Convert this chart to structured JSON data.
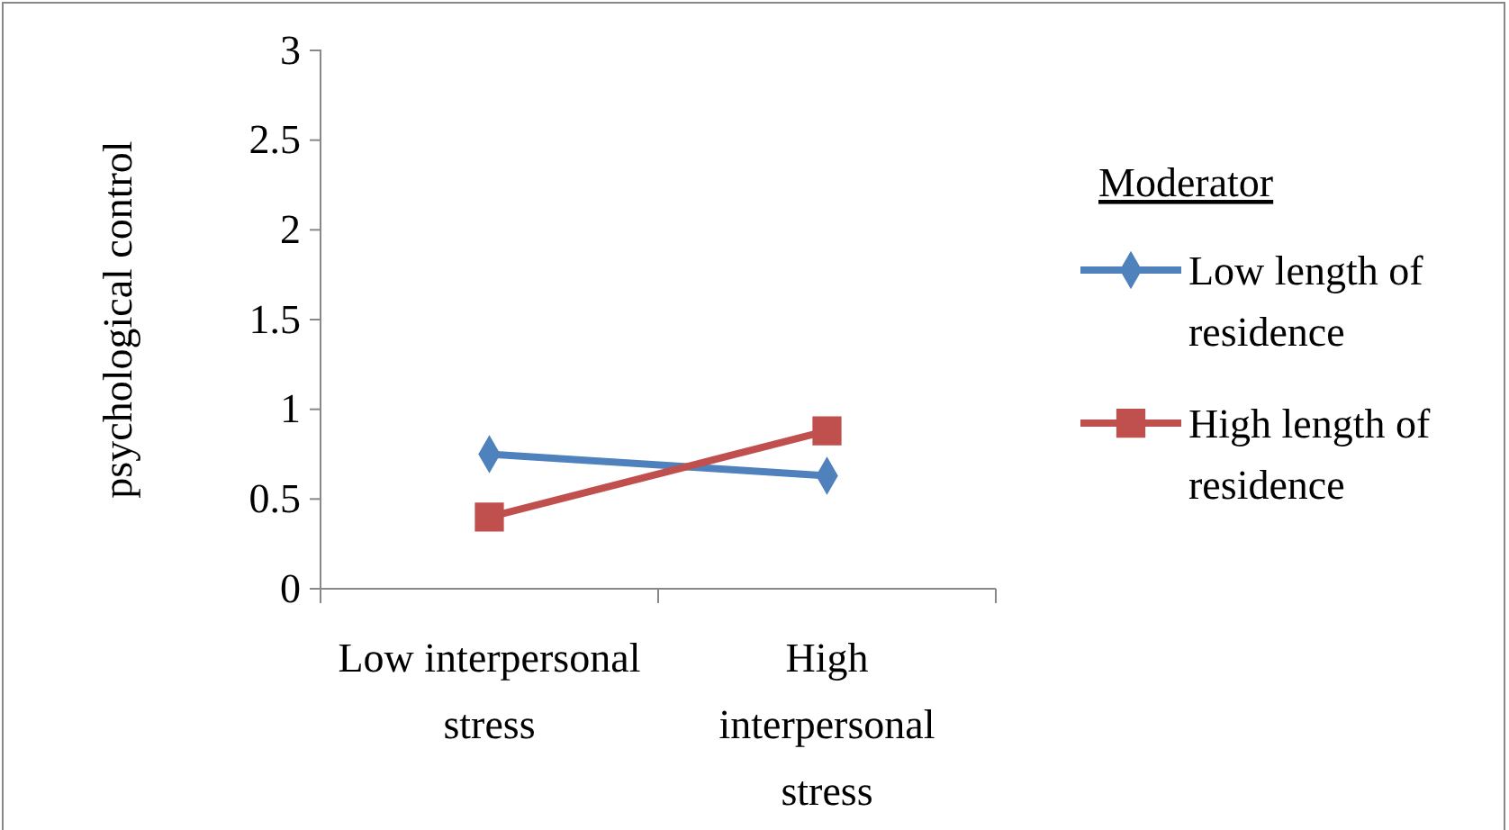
{
  "chart_data": {
    "type": "line",
    "ylabel": "psychological control",
    "legend_title": "Moderator",
    "categories": [
      "Low interpersonal stress",
      "High interpersonal stress"
    ],
    "series": [
      {
        "name": "Low length of residence",
        "color": "#4f81bd",
        "marker": "diamond",
        "values": [
          0.75,
          0.63
        ]
      },
      {
        "name": "High length of residence",
        "color": "#c0504d",
        "marker": "square",
        "values": [
          0.4,
          0.88
        ]
      }
    ],
    "ylim": [
      0,
      3
    ],
    "yticks": [
      0,
      0.5,
      1,
      1.5,
      2,
      2.5,
      3
    ],
    "grid": false,
    "legend": "right"
  }
}
